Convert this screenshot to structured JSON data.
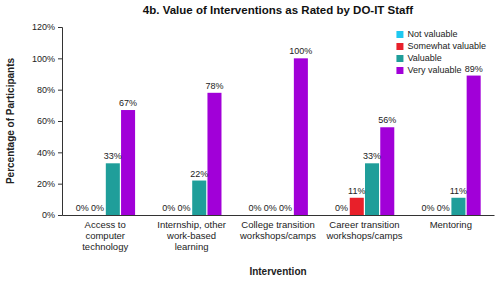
{
  "chart_data": {
    "type": "bar",
    "title": "4b. Value of Interventions as Rated by DO-IT Staff",
    "x_label": "Intervention",
    "y_label": "Percentage of Participants",
    "categories": [
      "Access to computer technology",
      "Internship, other work-based learning",
      "College transition workshops/camps",
      "Career transition workshops/camps",
      "Mentoring"
    ],
    "series": [
      {
        "name": "Not valuable",
        "color": "#1ec8f0",
        "values": [
          0,
          0,
          0,
          0,
          0
        ],
        "value_labels": [
          "0%",
          "0%",
          "0%",
          "0%",
          "0%"
        ]
      },
      {
        "name": "Somewhat valuable",
        "color": "#e8202a",
        "values": [
          0,
          0,
          0,
          11,
          0
        ],
        "value_labels": [
          "0%",
          "0%",
          "0%",
          "11%",
          "0%"
        ]
      },
      {
        "name": "Valuable",
        "color": "#1f9e9a",
        "values": [
          33,
          22,
          0,
          33,
          11
        ],
        "value_labels": [
          "33%",
          "22%",
          "0%",
          "33%",
          "11%"
        ]
      },
      {
        "name": "Very valuable",
        "color": "#a100d8",
        "values": [
          67,
          78,
          100,
          56,
          89
        ],
        "value_labels": [
          "67%",
          "78%",
          "100%",
          "56%",
          "89%"
        ]
      }
    ],
    "ylim": [
      0,
      120
    ],
    "yticks": [
      {
        "value": 0,
        "label": "0%"
      },
      {
        "value": 20,
        "label": "20%"
      },
      {
        "value": 40,
        "label": "40%"
      },
      {
        "value": 60,
        "label": "60%"
      },
      {
        "value": 80,
        "label": "80%"
      },
      {
        "value": 100,
        "label": "100%"
      },
      {
        "value": 120,
        "label": "120%"
      }
    ],
    "grid": false,
    "legend": "upper right",
    "data_labels": true
  }
}
